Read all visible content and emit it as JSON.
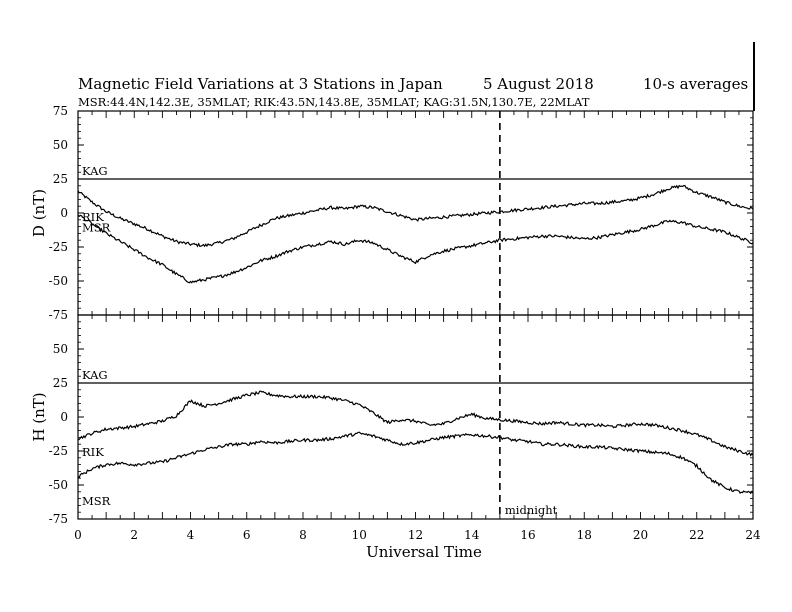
{
  "chart_data": {
    "type": "line",
    "title": "Magnetic Field Variations at 3 Stations in Japan",
    "date": "5 August 2018",
    "averaging": "10-s averages",
    "subtitle": "MSR:44.4N,142.3E, 35MLAT;  RIK:43.5N,143.8E, 35MLAT;  KAG:31.5N,130.7E, 22MLAT",
    "xlabel": "Universal Time",
    "xlim": [
      0,
      24
    ],
    "xticks": [
      "0",
      "2",
      "4",
      "6",
      "8",
      "10",
      "12",
      "14",
      "16",
      "18",
      "20",
      "22",
      "24"
    ],
    "yticks": [
      "75",
      "50",
      "25",
      "0",
      "-25",
      "-50",
      "-75"
    ],
    "marker": {
      "x": 15,
      "label": "midnight"
    },
    "panels": [
      {
        "ylabel": "D (nT)",
        "ylim": [
          -75,
          75
        ],
        "series": [
          {
            "name": "KAG",
            "x": [
              0,
              24
            ],
            "y": [
              25,
              25
            ]
          },
          {
            "name": "RIK",
            "x": [
              0,
              0.5,
              1,
              1.5,
              2,
              2.5,
              3,
              3.5,
              4,
              4.5,
              5,
              5.5,
              6,
              6.5,
              7,
              7.5,
              8,
              8.5,
              9,
              9.5,
              10,
              10.5,
              11,
              11.5,
              12,
              12.5,
              13,
              13.5,
              14,
              14.5,
              15,
              15.5,
              16,
              16.5,
              17,
              17.5,
              18,
              18.5,
              19,
              19.5,
              20,
              20.5,
              21,
              21.5,
              22,
              22.5,
              23,
              23.5,
              24
            ],
            "y": [
              16,
              8,
              1,
              -4,
              -8,
              -12,
              -17,
              -21,
              -23,
              -24,
              -22,
              -19,
              -14,
              -9,
              -4,
              -2,
              0,
              2,
              4,
              3,
              5,
              4,
              1,
              -2,
              -5,
              -4,
              -3,
              -2,
              -1,
              0,
              1,
              2,
              3,
              4,
              5,
              6,
              7,
              7,
              8,
              9,
              11,
              14,
              18,
              20,
              15,
              12,
              8,
              5,
              3
            ]
          },
          {
            "name": "MSR",
            "x": [
              0,
              0.5,
              1,
              1.5,
              2,
              2.5,
              3,
              3.5,
              4,
              4.5,
              5,
              5.5,
              6,
              6.5,
              7,
              7.5,
              8,
              8.5,
              9,
              9.5,
              10,
              10.5,
              11,
              11.5,
              12,
              12.5,
              13,
              13.5,
              14,
              14.5,
              15,
              15.5,
              16,
              16.5,
              17,
              17.5,
              18,
              18.5,
              19,
              19.5,
              20,
              20.5,
              21,
              21.5,
              22,
              22.5,
              23,
              23.5,
              24
            ],
            "y": [
              -1,
              -8,
              -15,
              -21,
              -27,
              -33,
              -38,
              -45,
              -51,
              -49,
              -47,
              -44,
              -40,
              -35,
              -32,
              -28,
              -25,
              -23,
              -21,
              -23,
              -20,
              -22,
              -27,
              -32,
              -36,
              -31,
              -28,
              -26,
              -24,
              -22,
              -20,
              -19,
              -18,
              -17,
              -17,
              -18,
              -19,
              -18,
              -16,
              -14,
              -12,
              -9,
              -6,
              -7,
              -10,
              -12,
              -14,
              -18,
              -22
            ]
          }
        ]
      },
      {
        "ylabel": "H (nT)",
        "ylim": [
          -75,
          75
        ],
        "series": [
          {
            "name": "KAG",
            "x": [
              0,
              24
            ],
            "y": [
              25,
              25
            ]
          },
          {
            "name": "RIK",
            "x": [
              0,
              0.5,
              1,
              1.5,
              2,
              2.5,
              3,
              3.5,
              4,
              4.5,
              5,
              5.5,
              6,
              6.5,
              7,
              7.5,
              8,
              8.5,
              9,
              9.5,
              10,
              10.5,
              11,
              11.5,
              12,
              12.5,
              13,
              13.5,
              14,
              14.5,
              15,
              15.5,
              16,
              16.5,
              17,
              17.5,
              18,
              18.5,
              19,
              19.5,
              20,
              20.5,
              21,
              21.5,
              22,
              22.5,
              23,
              23.5,
              24
            ],
            "y": [
              -16,
              -12,
              -9,
              -8,
              -7,
              -5,
              -3,
              1,
              12,
              8,
              10,
              13,
              16,
              18,
              16,
              15,
              15,
              15,
              14,
              12,
              9,
              3,
              -4,
              -2,
              -3,
              -6,
              -5,
              -1,
              2,
              -1,
              -2,
              -3,
              -4,
              -5,
              -4,
              -5,
              -6,
              -6,
              -7,
              -6,
              -5,
              -6,
              -8,
              -10,
              -13,
              -17,
              -22,
              -25,
              -28
            ]
          },
          {
            "name": "MSR",
            "x": [
              0,
              0.5,
              1,
              1.5,
              2,
              2.5,
              3,
              3.5,
              4,
              4.5,
              5,
              5.5,
              6,
              6.5,
              7,
              7.5,
              8,
              8.5,
              9,
              9.5,
              10,
              10.5,
              11,
              11.5,
              12,
              12.5,
              13,
              13.5,
              14,
              14.5,
              15,
              15.5,
              16,
              16.5,
              17,
              17.5,
              18,
              18.5,
              19,
              19.5,
              20,
              20.5,
              21,
              21.5,
              22,
              22.5,
              23,
              23.5,
              24
            ],
            "y": [
              -44,
              -38,
              -35,
              -34,
              -35,
              -34,
              -33,
              -30,
              -27,
              -24,
              -22,
              -20,
              -20,
              -18,
              -19,
              -18,
              -17,
              -17,
              -16,
              -14,
              -12,
              -14,
              -17,
              -20,
              -19,
              -17,
              -15,
              -14,
              -13,
              -14,
              -15,
              -17,
              -18,
              -20,
              -20,
              -21,
              -22,
              -22,
              -23,
              -24,
              -25,
              -26,
              -27,
              -30,
              -36,
              -46,
              -52,
              -55,
              -56
            ]
          }
        ]
      }
    ]
  }
}
